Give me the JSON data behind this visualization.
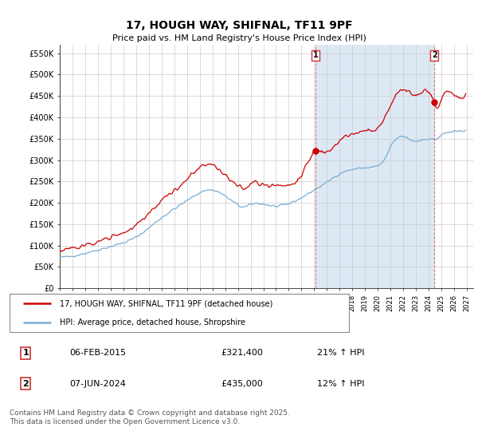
{
  "title": "17, HOUGH WAY, SHIFNAL, TF11 9PF",
  "subtitle": "Price paid vs. HM Land Registry's House Price Index (HPI)",
  "ylim": [
    0,
    570000
  ],
  "xlim_start": 1995.0,
  "xlim_end": 2027.5,
  "grid_color": "#cccccc",
  "plot_bg": "#ffffff",
  "legend_entry1": "17, HOUGH WAY, SHIFNAL, TF11 9PF (detached house)",
  "legend_entry2": "HPI: Average price, detached house, Shropshire",
  "sale1_date": "06-FEB-2015",
  "sale1_price": "£321,400",
  "sale1_hpi": "21% ↑ HPI",
  "sale2_date": "07-JUN-2024",
  "sale2_price": "£435,000",
  "sale2_hpi": "12% ↑ HPI",
  "footer": "Contains HM Land Registry data © Crown copyright and database right 2025.\nThis data is licensed under the Open Government Licence v3.0.",
  "line1_color": "#cc0000",
  "line2_color": "#7aadcf",
  "vline1_x": 2015.09,
  "vline2_x": 2024.44,
  "marker1_y": 321400,
  "marker2_y": 435000,
  "shade_color": "#dde8f5",
  "ytick_vals": [
    0,
    50000,
    100000,
    150000,
    200000,
    250000,
    300000,
    350000,
    400000,
    450000,
    500000,
    550000
  ],
  "ytick_labels": [
    "£0",
    "£50K",
    "£100K",
    "£150K",
    "£200K",
    "£250K",
    "£300K",
    "£350K",
    "£400K",
    "£450K",
    "£500K",
    "£550K"
  ]
}
